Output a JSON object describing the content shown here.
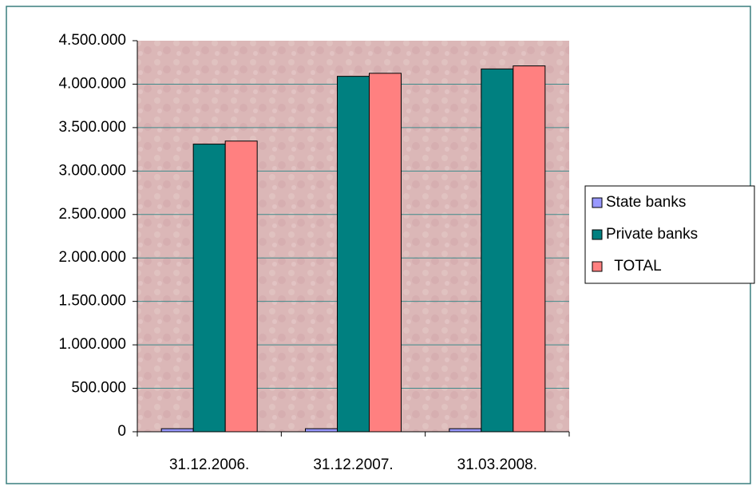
{
  "chart_data": {
    "type": "bar",
    "categories": [
      "31.12.2006.",
      "31.12.2007.",
      "31.03.2008."
    ],
    "series": [
      {
        "name": "State banks",
        "color": "#9999ff",
        "values": [
          35000,
          35000,
          35000
        ]
      },
      {
        "name": "Private banks",
        "color": "#008080",
        "values": [
          3310000,
          4090000,
          4175000
        ]
      },
      {
        "name": "  TOTAL",
        "color": "#ff8080",
        "values": [
          3345000,
          4125000,
          4210000
        ]
      }
    ],
    "ylim": [
      0,
      4500000
    ],
    "yticks": [
      0,
      {
        "value": 500000,
        "label": "500.000"
      },
      {
        "value": 1000000,
        "label": "1.000.000"
      },
      {
        "value": 1500000,
        "label": "1.500.000"
      },
      {
        "value": 2000000,
        "label": "2.000.000"
      },
      {
        "value": 2500000,
        "label": "2.500.000"
      },
      {
        "value": 3000000,
        "label": "3.000.000"
      },
      {
        "value": 3500000,
        "label": "3.500.000"
      },
      {
        "value": 4000000,
        "label": "4.000.000"
      },
      {
        "value": 4500000,
        "label": "4.500.000"
      }
    ],
    "grid": true,
    "legend": "right"
  }
}
